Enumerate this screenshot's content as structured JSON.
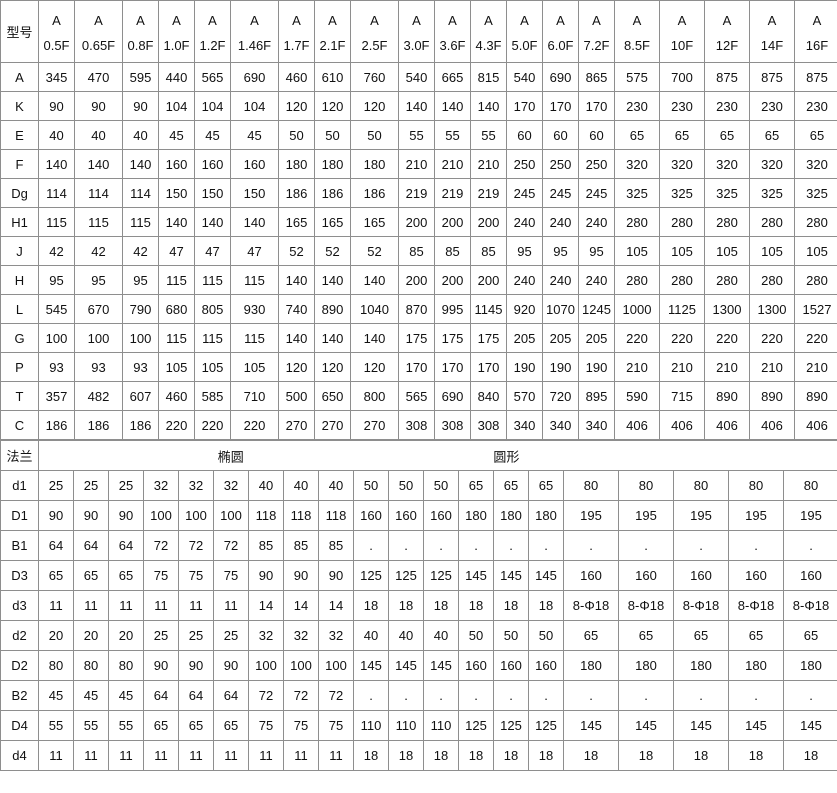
{
  "table": {
    "corner_label": "型号",
    "series_label": "A",
    "models": [
      "0.5F",
      "0.65F",
      "0.8F",
      "1.0F",
      "1.2F",
      "1.46F",
      "1.7F",
      "2.1F",
      "2.5F",
      "3.0F",
      "3.6F",
      "4.3F",
      "5.0F",
      "6.0F",
      "7.2F",
      "8.5F",
      "10F",
      "12F",
      "14F",
      "16F"
    ],
    "top_rows": [
      {
        "label": "A",
        "values": [
          345,
          470,
          595,
          440,
          565,
          690,
          460,
          610,
          760,
          540,
          665,
          815,
          540,
          690,
          865,
          575,
          700,
          875,
          875,
          875
        ]
      },
      {
        "label": "K",
        "values": [
          90,
          90,
          90,
          104,
          104,
          104,
          120,
          120,
          120,
          140,
          140,
          140,
          170,
          170,
          170,
          230,
          230,
          230,
          230,
          230
        ]
      },
      {
        "label": "E",
        "values": [
          40,
          40,
          40,
          45,
          45,
          45,
          50,
          50,
          50,
          55,
          55,
          55,
          60,
          60,
          60,
          65,
          65,
          65,
          65,
          65
        ]
      },
      {
        "label": "F",
        "values": [
          140,
          140,
          140,
          160,
          160,
          160,
          180,
          180,
          180,
          210,
          210,
          210,
          250,
          250,
          250,
          320,
          320,
          320,
          320,
          320
        ]
      },
      {
        "label": "Dg",
        "values": [
          114,
          114,
          114,
          150,
          150,
          150,
          186,
          186,
          186,
          219,
          219,
          219,
          245,
          245,
          245,
          325,
          325,
          325,
          325,
          325
        ]
      },
      {
        "label": "H1",
        "values": [
          115,
          115,
          115,
          140,
          140,
          140,
          165,
          165,
          165,
          200,
          200,
          200,
          240,
          240,
          240,
          280,
          280,
          280,
          280,
          280
        ]
      },
      {
        "label": "J",
        "values": [
          42,
          42,
          42,
          47,
          47,
          47,
          52,
          52,
          52,
          85,
          85,
          85,
          95,
          95,
          95,
          105,
          105,
          105,
          105,
          105
        ]
      },
      {
        "label": "H",
        "values": [
          95,
          95,
          95,
          115,
          115,
          115,
          140,
          140,
          140,
          200,
          200,
          200,
          240,
          240,
          240,
          280,
          280,
          280,
          280,
          280
        ]
      },
      {
        "label": "L",
        "values": [
          545,
          670,
          790,
          680,
          805,
          930,
          740,
          890,
          1040,
          870,
          995,
          1145,
          920,
          1070,
          1245,
          1000,
          1125,
          1300,
          1300,
          1527
        ]
      },
      {
        "label": "G",
        "values": [
          100,
          100,
          100,
          115,
          115,
          115,
          140,
          140,
          140,
          175,
          175,
          175,
          205,
          205,
          205,
          220,
          220,
          220,
          220,
          220
        ]
      },
      {
        "label": "P",
        "values": [
          93,
          93,
          93,
          105,
          105,
          105,
          120,
          120,
          120,
          170,
          170,
          170,
          190,
          190,
          190,
          210,
          210,
          210,
          210,
          210
        ]
      },
      {
        "label": "T",
        "values": [
          357,
          482,
          607,
          460,
          585,
          710,
          500,
          650,
          800,
          565,
          690,
          840,
          570,
          720,
          895,
          590,
          715,
          890,
          890,
          890
        ]
      },
      {
        "label": "C",
        "values": [
          186,
          186,
          186,
          220,
          220,
          220,
          270,
          270,
          270,
          308,
          308,
          308,
          340,
          340,
          340,
          406,
          406,
          406,
          406,
          406
        ]
      }
    ],
    "flange": {
      "label": "法兰",
      "oval": "椭圆",
      "round": "圆形"
    },
    "bottom_rows": [
      {
        "label": "d1",
        "values": [
          25,
          25,
          25,
          32,
          32,
          32,
          40,
          40,
          40,
          50,
          50,
          50,
          65,
          65,
          65,
          80,
          80,
          80,
          80,
          80
        ]
      },
      {
        "label": "D1",
        "values": [
          90,
          90,
          90,
          100,
          100,
          100,
          118,
          118,
          118,
          160,
          160,
          160,
          180,
          180,
          180,
          195,
          195,
          195,
          195,
          195
        ]
      },
      {
        "label": "B1",
        "values": [
          64,
          64,
          64,
          72,
          72,
          72,
          85,
          85,
          85,
          ".",
          ".",
          ".",
          ".",
          ".",
          ".",
          ".",
          ".",
          ".",
          ".",
          "."
        ]
      },
      {
        "label": "D3",
        "values": [
          65,
          65,
          65,
          75,
          75,
          75,
          90,
          90,
          90,
          125,
          125,
          125,
          145,
          145,
          145,
          160,
          160,
          160,
          160,
          160
        ]
      },
      {
        "label": "d3",
        "values": [
          11,
          11,
          11,
          11,
          11,
          11,
          14,
          14,
          14,
          18,
          18,
          18,
          18,
          18,
          18,
          "8-Φ18",
          "8-Φ18",
          "8-Φ18",
          "8-Φ18",
          "8-Φ18"
        ]
      },
      {
        "label": "d2",
        "values": [
          20,
          20,
          20,
          25,
          25,
          25,
          32,
          32,
          32,
          40,
          40,
          40,
          50,
          50,
          50,
          65,
          65,
          65,
          65,
          65
        ]
      },
      {
        "label": "D2",
        "values": [
          80,
          80,
          80,
          90,
          90,
          90,
          100,
          100,
          100,
          145,
          145,
          145,
          160,
          160,
          160,
          180,
          180,
          180,
          180,
          180
        ]
      },
      {
        "label": "B2",
        "values": [
          45,
          45,
          45,
          64,
          64,
          64,
          72,
          72,
          72,
          ".",
          ".",
          ".",
          ".",
          ".",
          ".",
          ".",
          ".",
          ".",
          ".",
          "."
        ]
      },
      {
        "label": "D4",
        "values": [
          55,
          55,
          55,
          65,
          65,
          65,
          75,
          75,
          75,
          110,
          110,
          110,
          125,
          125,
          125,
          145,
          145,
          145,
          145,
          145
        ]
      },
      {
        "label": "d4",
        "values": [
          11,
          11,
          11,
          11,
          11,
          11,
          11,
          11,
          11,
          18,
          18,
          18,
          18,
          18,
          18,
          18,
          18,
          18,
          18,
          18
        ]
      }
    ]
  },
  "colors": {
    "border": "#8e8e8e",
    "text": "#111111",
    "background": "#ffffff"
  }
}
